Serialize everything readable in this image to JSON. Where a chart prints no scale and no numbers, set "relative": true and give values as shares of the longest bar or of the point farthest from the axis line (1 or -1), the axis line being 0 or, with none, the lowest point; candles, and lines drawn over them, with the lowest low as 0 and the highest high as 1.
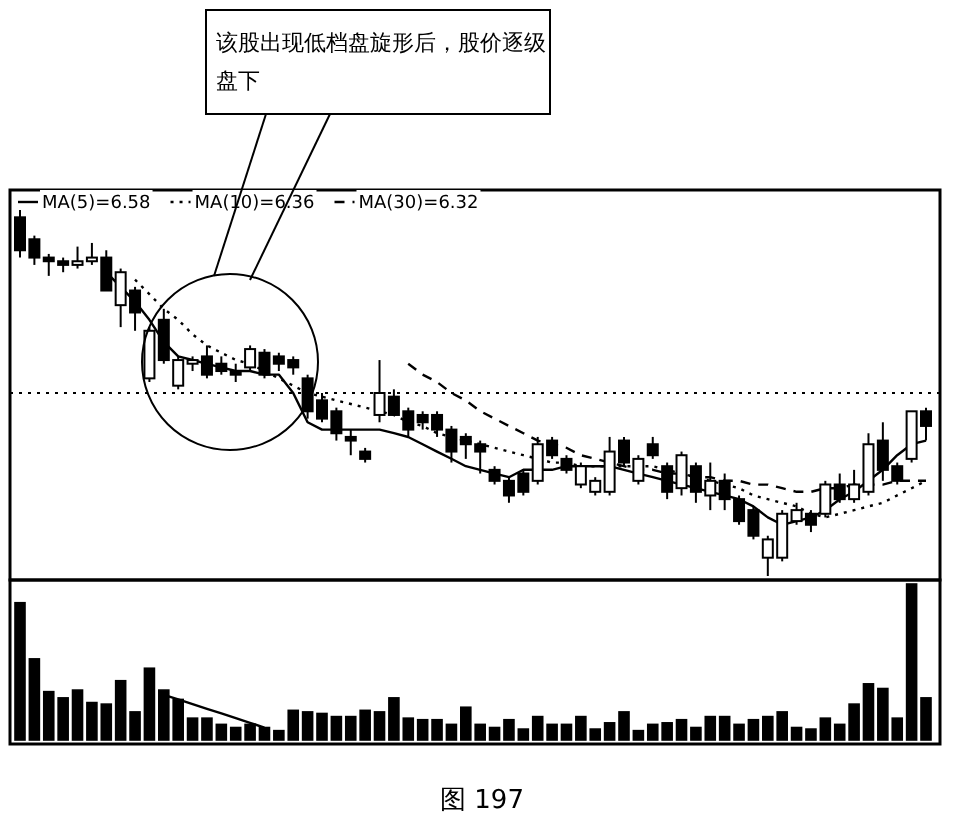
{
  "chart_data": [
    {
      "type": "candlestick",
      "relative": true,
      "legend": "top left",
      "categories": [
        null,
        null,
        null,
        null,
        null,
        null,
        null,
        null,
        null,
        null,
        null,
        null,
        null,
        null,
        null,
        null,
        null,
        null,
        null,
        null,
        null,
        null,
        null,
        null,
        null,
        null,
        null,
        null,
        null,
        null,
        null,
        null,
        null,
        null,
        null,
        null,
        null,
        null,
        null,
        null,
        null,
        null,
        null,
        null,
        null,
        null,
        null,
        null,
        null,
        null,
        null,
        null,
        null,
        null,
        null,
        null,
        null,
        null,
        null,
        null,
        null,
        null,
        null,
        null
      ],
      "ohlc": [
        [
          0.98,
          1,
          0.87,
          0.89
        ],
        [
          0.92,
          0.93,
          0.85,
          0.87
        ],
        [
          0.87,
          0.88,
          0.82,
          0.86
        ],
        [
          0.86,
          0.87,
          0.83,
          0.85
        ],
        [
          0.85,
          0.9,
          0.84,
          0.86
        ],
        [
          0.86,
          0.91,
          0.85,
          0.87
        ],
        [
          0.87,
          0.89,
          0.78,
          0.78
        ],
        [
          0.74,
          0.84,
          0.68,
          0.83
        ],
        [
          0.78,
          0.79,
          0.67,
          0.72
        ],
        [
          0.54,
          0.68,
          0.53,
          0.67
        ],
        [
          0.7,
          0.73,
          0.58,
          0.59
        ],
        [
          0.52,
          0.6,
          0.51,
          0.59
        ],
        [
          0.58,
          0.6,
          0.56,
          0.59
        ],
        [
          0.6,
          0.63,
          0.54,
          0.55
        ],
        [
          0.58,
          0.6,
          0.55,
          0.56
        ],
        [
          0.56,
          0.58,
          0.53,
          0.55
        ],
        [
          0.57,
          0.63,
          0.56,
          0.62
        ],
        [
          0.61,
          0.62,
          0.54,
          0.55
        ],
        [
          0.6,
          0.61,
          0.56,
          0.58
        ],
        [
          0.59,
          0.6,
          0.55,
          0.57
        ],
        [
          0.54,
          0.55,
          0.43,
          0.45
        ],
        [
          0.48,
          0.5,
          0.42,
          0.43
        ],
        [
          0.45,
          0.46,
          0.37,
          0.39
        ],
        [
          0.38,
          0.4,
          0.33,
          0.37
        ],
        [
          0.34,
          0.35,
          0.31,
          0.32
        ],
        [
          0.44,
          0.59,
          0.42,
          0.5
        ],
        [
          0.49,
          0.51,
          0.44,
          0.44
        ],
        [
          0.45,
          0.46,
          0.38,
          0.4
        ],
        [
          0.44,
          0.45,
          0.4,
          0.42
        ],
        [
          0.44,
          0.45,
          0.38,
          0.4
        ],
        [
          0.4,
          0.41,
          0.31,
          0.34
        ],
        [
          0.38,
          0.39,
          0.32,
          0.36
        ],
        [
          0.36,
          0.37,
          0.28,
          0.34
        ],
        [
          0.29,
          0.3,
          0.25,
          0.26
        ],
        [
          0.26,
          0.27,
          0.2,
          0.22
        ],
        [
          0.28,
          0.29,
          0.22,
          0.23
        ],
        [
          0.26,
          0.38,
          0.25,
          0.36
        ],
        [
          0.37,
          0.38,
          0.32,
          0.33
        ],
        [
          0.32,
          0.33,
          0.28,
          0.29
        ],
        [
          0.25,
          0.31,
          0.24,
          0.3
        ],
        [
          0.23,
          0.27,
          0.22,
          0.26
        ],
        [
          0.23,
          0.38,
          0.22,
          0.34
        ],
        [
          0.37,
          0.38,
          0.3,
          0.31
        ],
        [
          0.26,
          0.33,
          0.25,
          0.32
        ],
        [
          0.36,
          0.38,
          0.32,
          0.33
        ],
        [
          0.3,
          0.31,
          0.21,
          0.23
        ],
        [
          0.24,
          0.34,
          0.22,
          0.33
        ],
        [
          0.3,
          0.31,
          0.2,
          0.23
        ],
        [
          0.22,
          0.31,
          0.18,
          0.26
        ],
        [
          0.26,
          0.28,
          0.18,
          0.21
        ],
        [
          0.21,
          0.22,
          0.14,
          0.15
        ],
        [
          0.18,
          0.19,
          0.1,
          0.11
        ],
        [
          0.05,
          0.11,
          0,
          0.1
        ],
        [
          0.05,
          0.18,
          0.04,
          0.17
        ],
        [
          0.15,
          0.2,
          0.14,
          0.18
        ],
        [
          0.17,
          0.18,
          0.12,
          0.14
        ],
        [
          0.17,
          0.26,
          0.16,
          0.25
        ],
        [
          0.25,
          0.28,
          0.2,
          0.21
        ],
        [
          0.21,
          0.29,
          0.2,
          0.25
        ],
        [
          0.23,
          0.39,
          0.22,
          0.36
        ],
        [
          0.37,
          0.42,
          0.26,
          0.29
        ],
        [
          0.3,
          0.31,
          0.25,
          0.26
        ],
        [
          0.32,
          0.45,
          0.31,
          0.45
        ],
        [
          0.45,
          0.46,
          0.37,
          0.41
        ]
      ],
      "series": [
        {
          "type": "line",
          "name": "MA(5)=6.58",
          "color": "#000000",
          "line_style": "solid",
          "values": [
            null,
            null,
            null,
            null,
            null,
            null,
            0.83,
            0.79,
            0.75,
            0.7,
            0.64,
            0.6,
            0.59,
            0.58,
            0.57,
            0.56,
            0.56,
            0.55,
            0.55,
            0.5,
            0.42,
            0.4,
            0.4,
            0.4,
            0.4,
            0.4,
            0.39,
            0.38,
            0.36,
            0.34,
            0.32,
            0.3,
            0.29,
            0.28,
            0.27,
            0.29,
            0.29,
            0.29,
            0.3,
            0.3,
            0.3,
            0.3,
            0.29,
            0.28,
            0.27,
            0.26,
            0.25,
            0.24,
            0.23,
            0.22,
            0.21,
            0.19,
            0.16,
            0.14,
            0.15,
            0.16,
            0.18,
            0.21,
            0.23,
            0.26,
            0.29,
            0.33,
            0.36,
            0.37
          ]
        },
        {
          "type": "line",
          "name": "MA(10)=6.36",
          "color": "#000000",
          "line_style": "dotted",
          "values": [
            null,
            null,
            null,
            null,
            null,
            null,
            null,
            null,
            0.81,
            0.77,
            0.73,
            0.7,
            0.66,
            0.63,
            0.61,
            0.59,
            0.58,
            0.56,
            0.54,
            0.52,
            0.5,
            0.49,
            0.48,
            0.47,
            0.46,
            0.45,
            0.44,
            0.42,
            0.41,
            0.39,
            0.38,
            0.37,
            0.36,
            0.35,
            0.34,
            0.33,
            0.32,
            0.31,
            0.31,
            0.3,
            0.3,
            0.3,
            0.3,
            0.3,
            0.3,
            0.29,
            0.28,
            0.27,
            0.26,
            0.25,
            0.24,
            0.22,
            0.21,
            0.2,
            0.19,
            0.17,
            0.16,
            0.17,
            0.18,
            0.19,
            0.2,
            0.22,
            0.24,
            0.26
          ]
        },
        {
          "type": "line",
          "name": "MA(30)=6.32",
          "color": "#000000",
          "line_style": "dashed",
          "values": [
            null,
            null,
            null,
            null,
            null,
            null,
            null,
            null,
            null,
            null,
            null,
            null,
            null,
            null,
            null,
            null,
            null,
            null,
            null,
            null,
            null,
            null,
            null,
            null,
            null,
            null,
            null,
            0.58,
            0.55,
            0.53,
            0.5,
            0.48,
            0.45,
            0.43,
            0.41,
            0.39,
            0.37,
            0.36,
            0.35,
            0.33,
            0.32,
            0.31,
            0.3,
            0.29,
            0.29,
            0.28,
            0.28,
            0.27,
            0.27,
            0.26,
            0.26,
            0.25,
            0.25,
            0.24,
            0.23,
            0.23,
            0.24,
            0.24,
            0.25,
            0.25,
            0.25,
            0.26,
            0.26,
            0.26
          ]
        }
      ],
      "ref_lines": [
        {
          "axis": "y",
          "value": 0.5,
          "line_style": "dotted",
          "color": "#000000"
        }
      ],
      "annotations": [
        "该股出现低档盘旋形后，股价逐级盘下"
      ]
    },
    {
      "type": "bar",
      "relative": true,
      "categories": [
        null,
        null,
        null,
        null,
        null,
        null,
        null,
        null,
        null,
        null,
        null,
        null,
        null,
        null,
        null,
        null,
        null,
        null,
        null,
        null,
        null,
        null,
        null,
        null,
        null,
        null,
        null,
        null,
        null,
        null,
        null,
        null,
        null,
        null,
        null,
        null,
        null,
        null,
        null,
        null,
        null,
        null,
        null,
        null,
        null,
        null,
        null,
        null,
        null,
        null,
        null,
        null,
        null,
        null,
        null,
        null,
        null,
        null,
        null,
        null,
        null,
        null,
        null,
        null
      ],
      "series": [
        {
          "type": "bar",
          "color": "#000000",
          "values": [
            0.88,
            0.52,
            0.31,
            0.27,
            0.32,
            0.24,
            0.23,
            0.38,
            0.18,
            0.46,
            0.32,
            0.26,
            0.14,
            0.14,
            0.1,
            0.08,
            0.1,
            0.08,
            0.06,
            0.19,
            0.18,
            0.17,
            0.15,
            0.15,
            0.19,
            0.18,
            0.27,
            0.14,
            0.13,
            0.13,
            0.1,
            0.21,
            0.1,
            0.08,
            0.13,
            0.07,
            0.15,
            0.1,
            0.1,
            0.15,
            0.07,
            0.11,
            0.18,
            0.06,
            0.1,
            0.11,
            0.13,
            0.08,
            0.15,
            0.15,
            0.1,
            0.13,
            0.15,
            0.18,
            0.08,
            0.07,
            0.14,
            0.1,
            0.23,
            0.36,
            0.33,
            0.14,
            1,
            0.27
          ]
        },
        {
          "type": "line",
          "color": "#000000",
          "values": [
            null,
            null,
            null,
            null,
            null,
            null,
            null,
            null,
            null,
            null,
            0.29,
            0.26,
            0.23,
            0.2,
            0.17,
            0.14,
            0.11,
            0.08,
            null,
            null,
            null,
            null,
            null,
            null,
            null,
            null,
            null,
            null,
            null,
            null,
            null,
            null,
            null,
            null,
            null,
            null,
            null,
            null,
            null,
            null,
            null,
            null,
            null,
            null,
            null,
            null,
            null,
            null,
            null,
            null,
            null,
            null,
            null,
            null,
            null,
            null,
            null,
            null,
            null,
            null,
            null,
            null,
            null,
            null
          ]
        }
      ],
      "annotations": [
        "图 197"
      ]
    }
  ]
}
